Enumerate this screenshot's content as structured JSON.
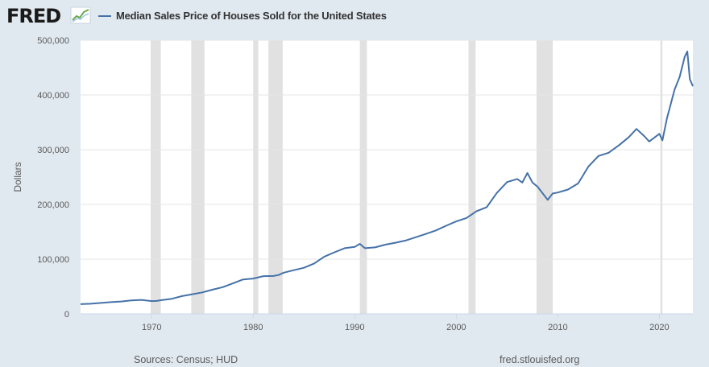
{
  "brand": {
    "logo_text": "FRED",
    "source_text": "Sources: Census; HUD",
    "site": "fred.stlouisfed.org"
  },
  "colors": {
    "background": "#e1e9f0",
    "plot_bg": "#ffffff",
    "series": "#4572a7",
    "recession": "#e1e1e1",
    "grid": "#e5e5e5"
  },
  "icons": {
    "logo_chart": "chart-graph-icon"
  },
  "chart_data": {
    "type": "line",
    "title": "Median Sales Price of Houses Sold for the United States",
    "xlabel": "",
    "ylabel": "Dollars",
    "xlim": [
      1963.0,
      2023.3
    ],
    "ylim": [
      0,
      500000
    ],
    "yticks": [
      0,
      100000,
      200000,
      300000,
      400000,
      500000
    ],
    "ytick_labels": [
      "0",
      "100,000",
      "200,000",
      "300,000",
      "400,000",
      "500,000"
    ],
    "xticks": [
      1970,
      1980,
      1990,
      2000,
      2010,
      2020
    ],
    "xtick_labels": [
      "1970",
      "1980",
      "1990",
      "2000",
      "2010",
      "2020"
    ],
    "grid": true,
    "recessions": [
      [
        1969.9,
        1970.9
      ],
      [
        1973.9,
        1975.2
      ],
      [
        1980.0,
        1980.5
      ],
      [
        1981.5,
        1982.9
      ],
      [
        1990.5,
        1991.2
      ],
      [
        2001.2,
        2001.9
      ],
      [
        2007.9,
        2009.5
      ],
      [
        2020.1,
        2020.3
      ]
    ],
    "series": [
      {
        "name": "Median Sales Price of Houses Sold for the United States",
        "x": [
          1963.0,
          1964.0,
          1965.0,
          1966.0,
          1967.0,
          1968.0,
          1969.0,
          1970.0,
          1970.5,
          1971.0,
          1972.0,
          1973.0,
          1974.0,
          1975.0,
          1976.0,
          1977.0,
          1978.0,
          1979.0,
          1980.0,
          1981.0,
          1982.0,
          1982.5,
          1983.0,
          1984.0,
          1985.0,
          1986.0,
          1987.0,
          1988.0,
          1989.0,
          1990.0,
          1990.5,
          1991.0,
          1992.0,
          1993.0,
          1994.0,
          1995.0,
          1996.0,
          1997.0,
          1998.0,
          1999.0,
          2000.0,
          2001.0,
          2002.0,
          2003.0,
          2004.0,
          2005.0,
          2006.0,
          2006.5,
          2007.0,
          2007.5,
          2008.0,
          2009.0,
          2009.5,
          2010.0,
          2011.0,
          2012.0,
          2013.0,
          2014.0,
          2015.0,
          2016.0,
          2017.0,
          2017.75,
          2018.5,
          2019.0,
          2020.0,
          2020.3,
          2020.75,
          2021.0,
          2021.5,
          2022.0,
          2022.5,
          2022.75,
          2023.0,
          2023.3
        ],
        "values": [
          17800,
          18500,
          20000,
          21500,
          22700,
          24700,
          25600,
          23400,
          23700,
          25200,
          27600,
          32500,
          35900,
          39300,
          44200,
          48800,
          55700,
          62900,
          64600,
          68900,
          69300,
          71000,
          75300,
          79900,
          84300,
          92000,
          104500,
          112500,
          120000,
          122300,
          128000,
          120000,
          121500,
          126500,
          130000,
          133900,
          140000,
          146000,
          152500,
          161000,
          169000,
          175200,
          187600,
          195000,
          221000,
          240900,
          246500,
          240000,
          257400,
          240000,
          232400,
          208400,
          220000,
          221800,
          227200,
          238400,
          268900,
          288500,
          294400,
          307800,
          323100,
          338000,
          325000,
          315000,
          329000,
          317000,
          358000,
          374900,
          410000,
          433100,
          470000,
          479500,
          429000,
          416000
        ]
      }
    ]
  }
}
